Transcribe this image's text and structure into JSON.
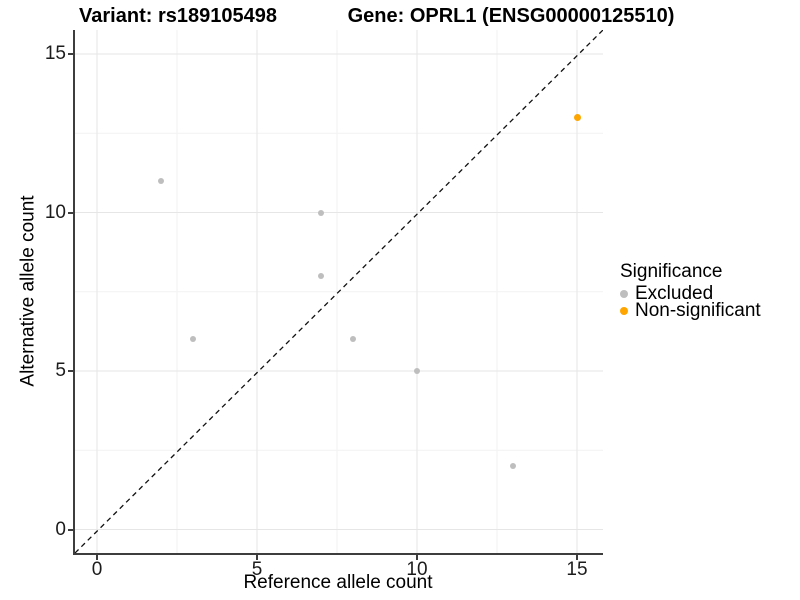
{
  "titles": {
    "variant": "Variant: rs189105498",
    "gene": "Gene: OPRL1 (ENSG00000125510)"
  },
  "axes": {
    "x": {
      "title": "Reference allele count",
      "tick_labels": [
        "0",
        "5",
        "10",
        "15"
      ]
    },
    "y": {
      "title": "Alternative allele count",
      "tick_labels": [
        "0",
        "5",
        "10",
        "15"
      ]
    }
  },
  "legend": {
    "title": "Significance",
    "items": [
      {
        "label": "Excluded",
        "color": "#bebebe"
      },
      {
        "label": "Non-significant",
        "color": "#ffa500"
      }
    ]
  },
  "chart_data": {
    "type": "scatter",
    "title": "Variant: rs189105498 | Gene: OPRL1 (ENSG00000125510)",
    "xlabel": "Reference allele count",
    "ylabel": "Alternative allele count",
    "xlim": [
      -0.75,
      15.75
    ],
    "ylim": [
      -0.75,
      15.75
    ],
    "x_ticks": [
      0,
      5,
      10,
      15
    ],
    "y_ticks": [
      0,
      5,
      10,
      15
    ],
    "minor_gridlines": [
      2.5,
      7.5,
      12.5
    ],
    "grid": true,
    "legend_position": "right",
    "series": [
      {
        "name": "Excluded",
        "color": "#bebebe",
        "marker_px": 6,
        "points": [
          [
            2,
            11
          ],
          [
            3,
            6
          ],
          [
            7,
            10
          ],
          [
            7,
            8
          ],
          [
            8,
            6
          ],
          [
            10,
            5
          ],
          [
            13,
            2
          ]
        ]
      },
      {
        "name": "Non-significant",
        "color": "#ffa500",
        "marker_px": 7,
        "points": [
          [
            15,
            13
          ]
        ]
      }
    ],
    "reference_line": {
      "equation": "y = x",
      "style": "dashed",
      "color": "#111111"
    }
  },
  "colors": {
    "axis_line": "#3d3d3d",
    "grid_major": "#e6e6e6",
    "grid_minor": "#f2f2f2",
    "excluded": "#bebebe",
    "non_significant": "#ffa500"
  }
}
